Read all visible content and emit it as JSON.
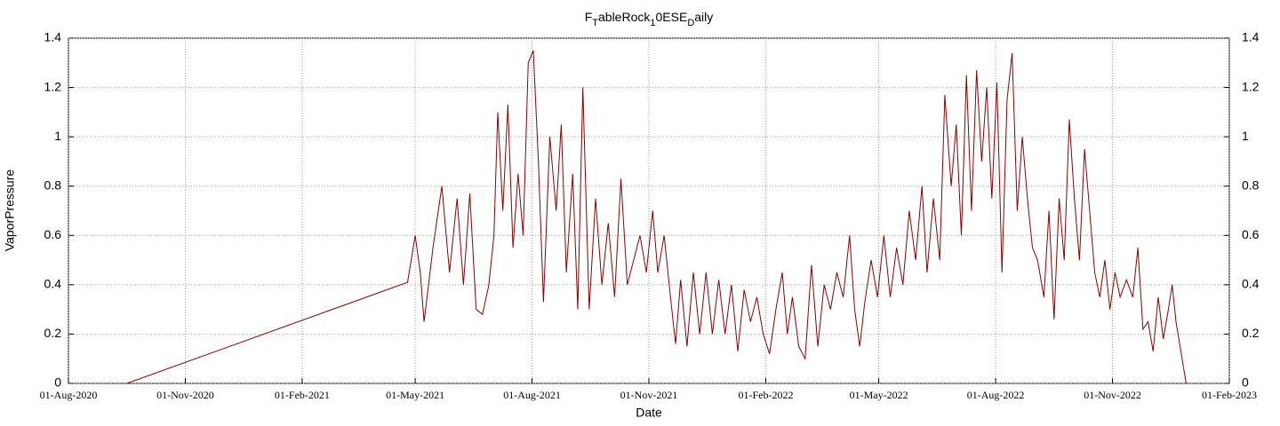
{
  "chart_data": {
    "type": "line",
    "title": [
      {
        "text": "F"
      },
      {
        "text": "T",
        "sub": true
      },
      {
        "text": "ableRock"
      },
      {
        "text": "1",
        "sub": true
      },
      {
        "text": "0ESE"
      },
      {
        "text": "D",
        "sub": true
      },
      {
        "text": "aily"
      }
    ],
    "x_label": "Date",
    "y_label": "VaporPressure",
    "xlim": [
      "2020-08-01",
      "2023-02-01"
    ],
    "xticks": [
      {
        "value": "2020-08-01",
        "label": "01-Aug-2020"
      },
      {
        "value": "2020-11-01",
        "label": "01-Nov-2020"
      },
      {
        "value": "2021-02-01",
        "label": "01-Feb-2021"
      },
      {
        "value": "2021-05-01",
        "label": "01-May-2021"
      },
      {
        "value": "2021-08-01",
        "label": "01-Aug-2021"
      },
      {
        "value": "2021-11-01",
        "label": "01-Nov-2021"
      },
      {
        "value": "2022-02-01",
        "label": "01-Feb-2022"
      },
      {
        "value": "2022-05-01",
        "label": "01-May-2022"
      },
      {
        "value": "2022-08-01",
        "label": "01-Aug-2022"
      },
      {
        "value": "2022-11-01",
        "label": "01-Nov-2022"
      },
      {
        "value": "2023-02-01",
        "label": "01-Feb-2023"
      }
    ],
    "ylim": [
      0,
      1.4
    ],
    "yticks": [
      0,
      0.2,
      0.4,
      0.6,
      0.8,
      1,
      1.2,
      1.4
    ],
    "y2lim": [
      0,
      1.4
    ],
    "y2ticks": [
      0,
      0.2,
      0.4,
      0.6,
      0.8,
      1,
      1.2,
      1.4
    ],
    "grid": true,
    "x": [
      "2020-09-16",
      "2021-04-25",
      "2021-05-01",
      "2021-05-05",
      "2021-05-08",
      "2021-05-15",
      "2021-05-22",
      "2021-05-28",
      "2021-06-03",
      "2021-06-08",
      "2021-06-13",
      "2021-06-18",
      "2021-06-23",
      "2021-06-28",
      "2021-07-02",
      "2021-07-05",
      "2021-07-09",
      "2021-07-13",
      "2021-07-17",
      "2021-07-21",
      "2021-07-25",
      "2021-07-29",
      "2021-08-02",
      "2021-08-06",
      "2021-08-10",
      "2021-08-15",
      "2021-08-20",
      "2021-08-24",
      "2021-08-28",
      "2021-09-02",
      "2021-09-06",
      "2021-09-10",
      "2021-09-15",
      "2021-09-20",
      "2021-09-25",
      "2021-09-30",
      "2021-10-05",
      "2021-10-10",
      "2021-10-15",
      "2021-10-20",
      "2021-10-25",
      "2021-10-30",
      "2021-11-04",
      "2021-11-08",
      "2021-11-13",
      "2021-11-18",
      "2021-11-22",
      "2021-11-26",
      "2021-12-01",
      "2021-12-06",
      "2021-12-11",
      "2021-12-16",
      "2021-12-21",
      "2021-12-26",
      "2021-12-31",
      "2022-01-05",
      "2022-01-10",
      "2022-01-15",
      "2022-01-20",
      "2022-01-25",
      "2022-01-30",
      "2022-02-04",
      "2022-02-09",
      "2022-02-14",
      "2022-02-18",
      "2022-02-22",
      "2022-02-27",
      "2022-03-04",
      "2022-03-09",
      "2022-03-14",
      "2022-03-19",
      "2022-03-24",
      "2022-03-29",
      "2022-04-03",
      "2022-04-08",
      "2022-04-12",
      "2022-04-16",
      "2022-04-20",
      "2022-04-25",
      "2022-04-30",
      "2022-05-05",
      "2022-05-10",
      "2022-05-15",
      "2022-05-20",
      "2022-05-25",
      "2022-05-30",
      "2022-06-04",
      "2022-06-08",
      "2022-06-13",
      "2022-06-18",
      "2022-06-22",
      "2022-06-27",
      "2022-07-01",
      "2022-07-05",
      "2022-07-09",
      "2022-07-13",
      "2022-07-17",
      "2022-07-21",
      "2022-07-25",
      "2022-07-29",
      "2022-08-02",
      "2022-08-06",
      "2022-08-10",
      "2022-08-14",
      "2022-08-18",
      "2022-08-22",
      "2022-08-26",
      "2022-08-30",
      "2022-09-03",
      "2022-09-08",
      "2022-09-12",
      "2022-09-16",
      "2022-09-20",
      "2022-09-24",
      "2022-09-28",
      "2022-10-02",
      "2022-10-06",
      "2022-10-10",
      "2022-10-14",
      "2022-10-18",
      "2022-10-22",
      "2022-10-26",
      "2022-10-30",
      "2022-11-03",
      "2022-11-07",
      "2022-11-12",
      "2022-11-17",
      "2022-11-21",
      "2022-11-25",
      "2022-11-29",
      "2022-12-03",
      "2022-12-07",
      "2022-12-11",
      "2022-12-15",
      "2022-12-18",
      "2022-12-21",
      "2022-12-29"
    ],
    "series": [
      {
        "name": "VaporPressure",
        "color": "#8b0000",
        "values": [
          0,
          0.41,
          0.6,
          0.45,
          0.25,
          0.55,
          0.8,
          0.45,
          0.75,
          0.4,
          0.77,
          0.3,
          0.28,
          0.4,
          0.6,
          1.1,
          0.7,
          1.13,
          0.55,
          0.85,
          0.6,
          1.3,
          1.35,
          0.9,
          0.33,
          1.0,
          0.7,
          1.05,
          0.45,
          0.85,
          0.3,
          1.2,
          0.3,
          0.75,
          0.4,
          0.65,
          0.35,
          0.83,
          0.4,
          0.5,
          0.6,
          0.45,
          0.7,
          0.45,
          0.6,
          0.35,
          0.16,
          0.42,
          0.15,
          0.45,
          0.2,
          0.45,
          0.2,
          0.42,
          0.2,
          0.4,
          0.13,
          0.38,
          0.25,
          0.35,
          0.2,
          0.12,
          0.3,
          0.45,
          0.2,
          0.35,
          0.15,
          0.1,
          0.48,
          0.15,
          0.4,
          0.3,
          0.45,
          0.35,
          0.6,
          0.3,
          0.15,
          0.33,
          0.5,
          0.35,
          0.6,
          0.35,
          0.55,
          0.4,
          0.7,
          0.5,
          0.8,
          0.45,
          0.75,
          0.5,
          1.17,
          0.8,
          1.05,
          0.6,
          1.25,
          0.7,
          1.27,
          0.9,
          1.2,
          0.75,
          1.22,
          0.45,
          1.15,
          1.34,
          0.7,
          1.0,
          0.75,
          0.55,
          0.5,
          0.35,
          0.7,
          0.26,
          0.75,
          0.5,
          1.07,
          0.75,
          0.5,
          0.95,
          0.7,
          0.45,
          0.35,
          0.5,
          0.3,
          0.45,
          0.35,
          0.42,
          0.35,
          0.55,
          0.22,
          0.25,
          0.13,
          0.35,
          0.18,
          0.3,
          0.4,
          0.25,
          0
        ]
      }
    ]
  }
}
